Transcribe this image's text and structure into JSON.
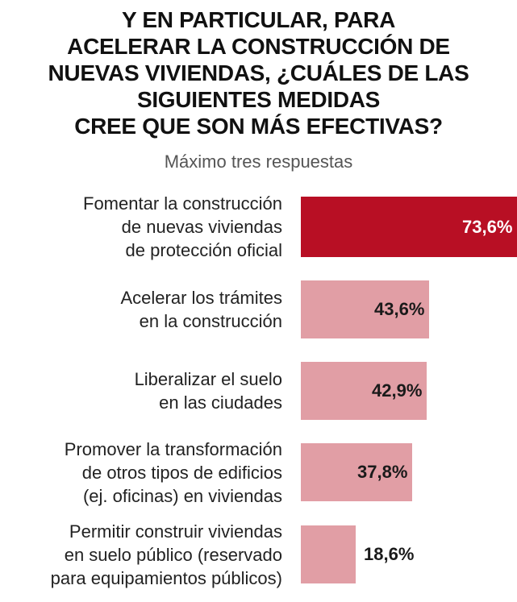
{
  "chart_data": {
    "type": "bar",
    "orientation": "horizontal",
    "title_lines": [
      "Y EN PARTICULAR, PARA",
      "ACELERAR LA CONSTRUCCIÓN DE",
      "NUEVAS VIVIENDAS, ¿CUÁLES DE LAS",
      "SIGUIENTES MEDIDAS",
      "CREE QUE SON MÁS EFECTIVAS?"
    ],
    "subtitle": "Máximo tres respuestas",
    "xlim": [
      0,
      73.6
    ],
    "bars": [
      {
        "label_lines": [
          "Fomentar la construcción",
          "de nuevas viviendas",
          "de protección oficial"
        ],
        "value": 73.6,
        "value_label": "73,6%",
        "color": "#b80f24",
        "value_color": "#ffffff"
      },
      {
        "label_lines": [
          "Acelerar los trámites",
          "en la construcción"
        ],
        "value": 43.6,
        "value_label": "43,6%",
        "color": "#e19ea5",
        "value_color": "#1a1a1a"
      },
      {
        "label_lines": [
          "Liberalizar el suelo",
          "en las ciudades"
        ],
        "value": 42.9,
        "value_label": "42,9%",
        "color": "#e19ea5",
        "value_color": "#1a1a1a"
      },
      {
        "label_lines": [
          "Promover la transformación",
          "de otros tipos de edificios",
          "(ej. oficinas) en viviendas"
        ],
        "value": 37.8,
        "value_label": "37,8%",
        "color": "#e19ea5",
        "value_color": "#1a1a1a"
      },
      {
        "label_lines": [
          "Permitir construir viviendas",
          "en suelo público (reservado",
          "para equipamientos públicos)"
        ],
        "value": 18.6,
        "value_label": "18,6%",
        "color": "#e19ea5",
        "value_color": "#1a1a1a"
      }
    ]
  }
}
